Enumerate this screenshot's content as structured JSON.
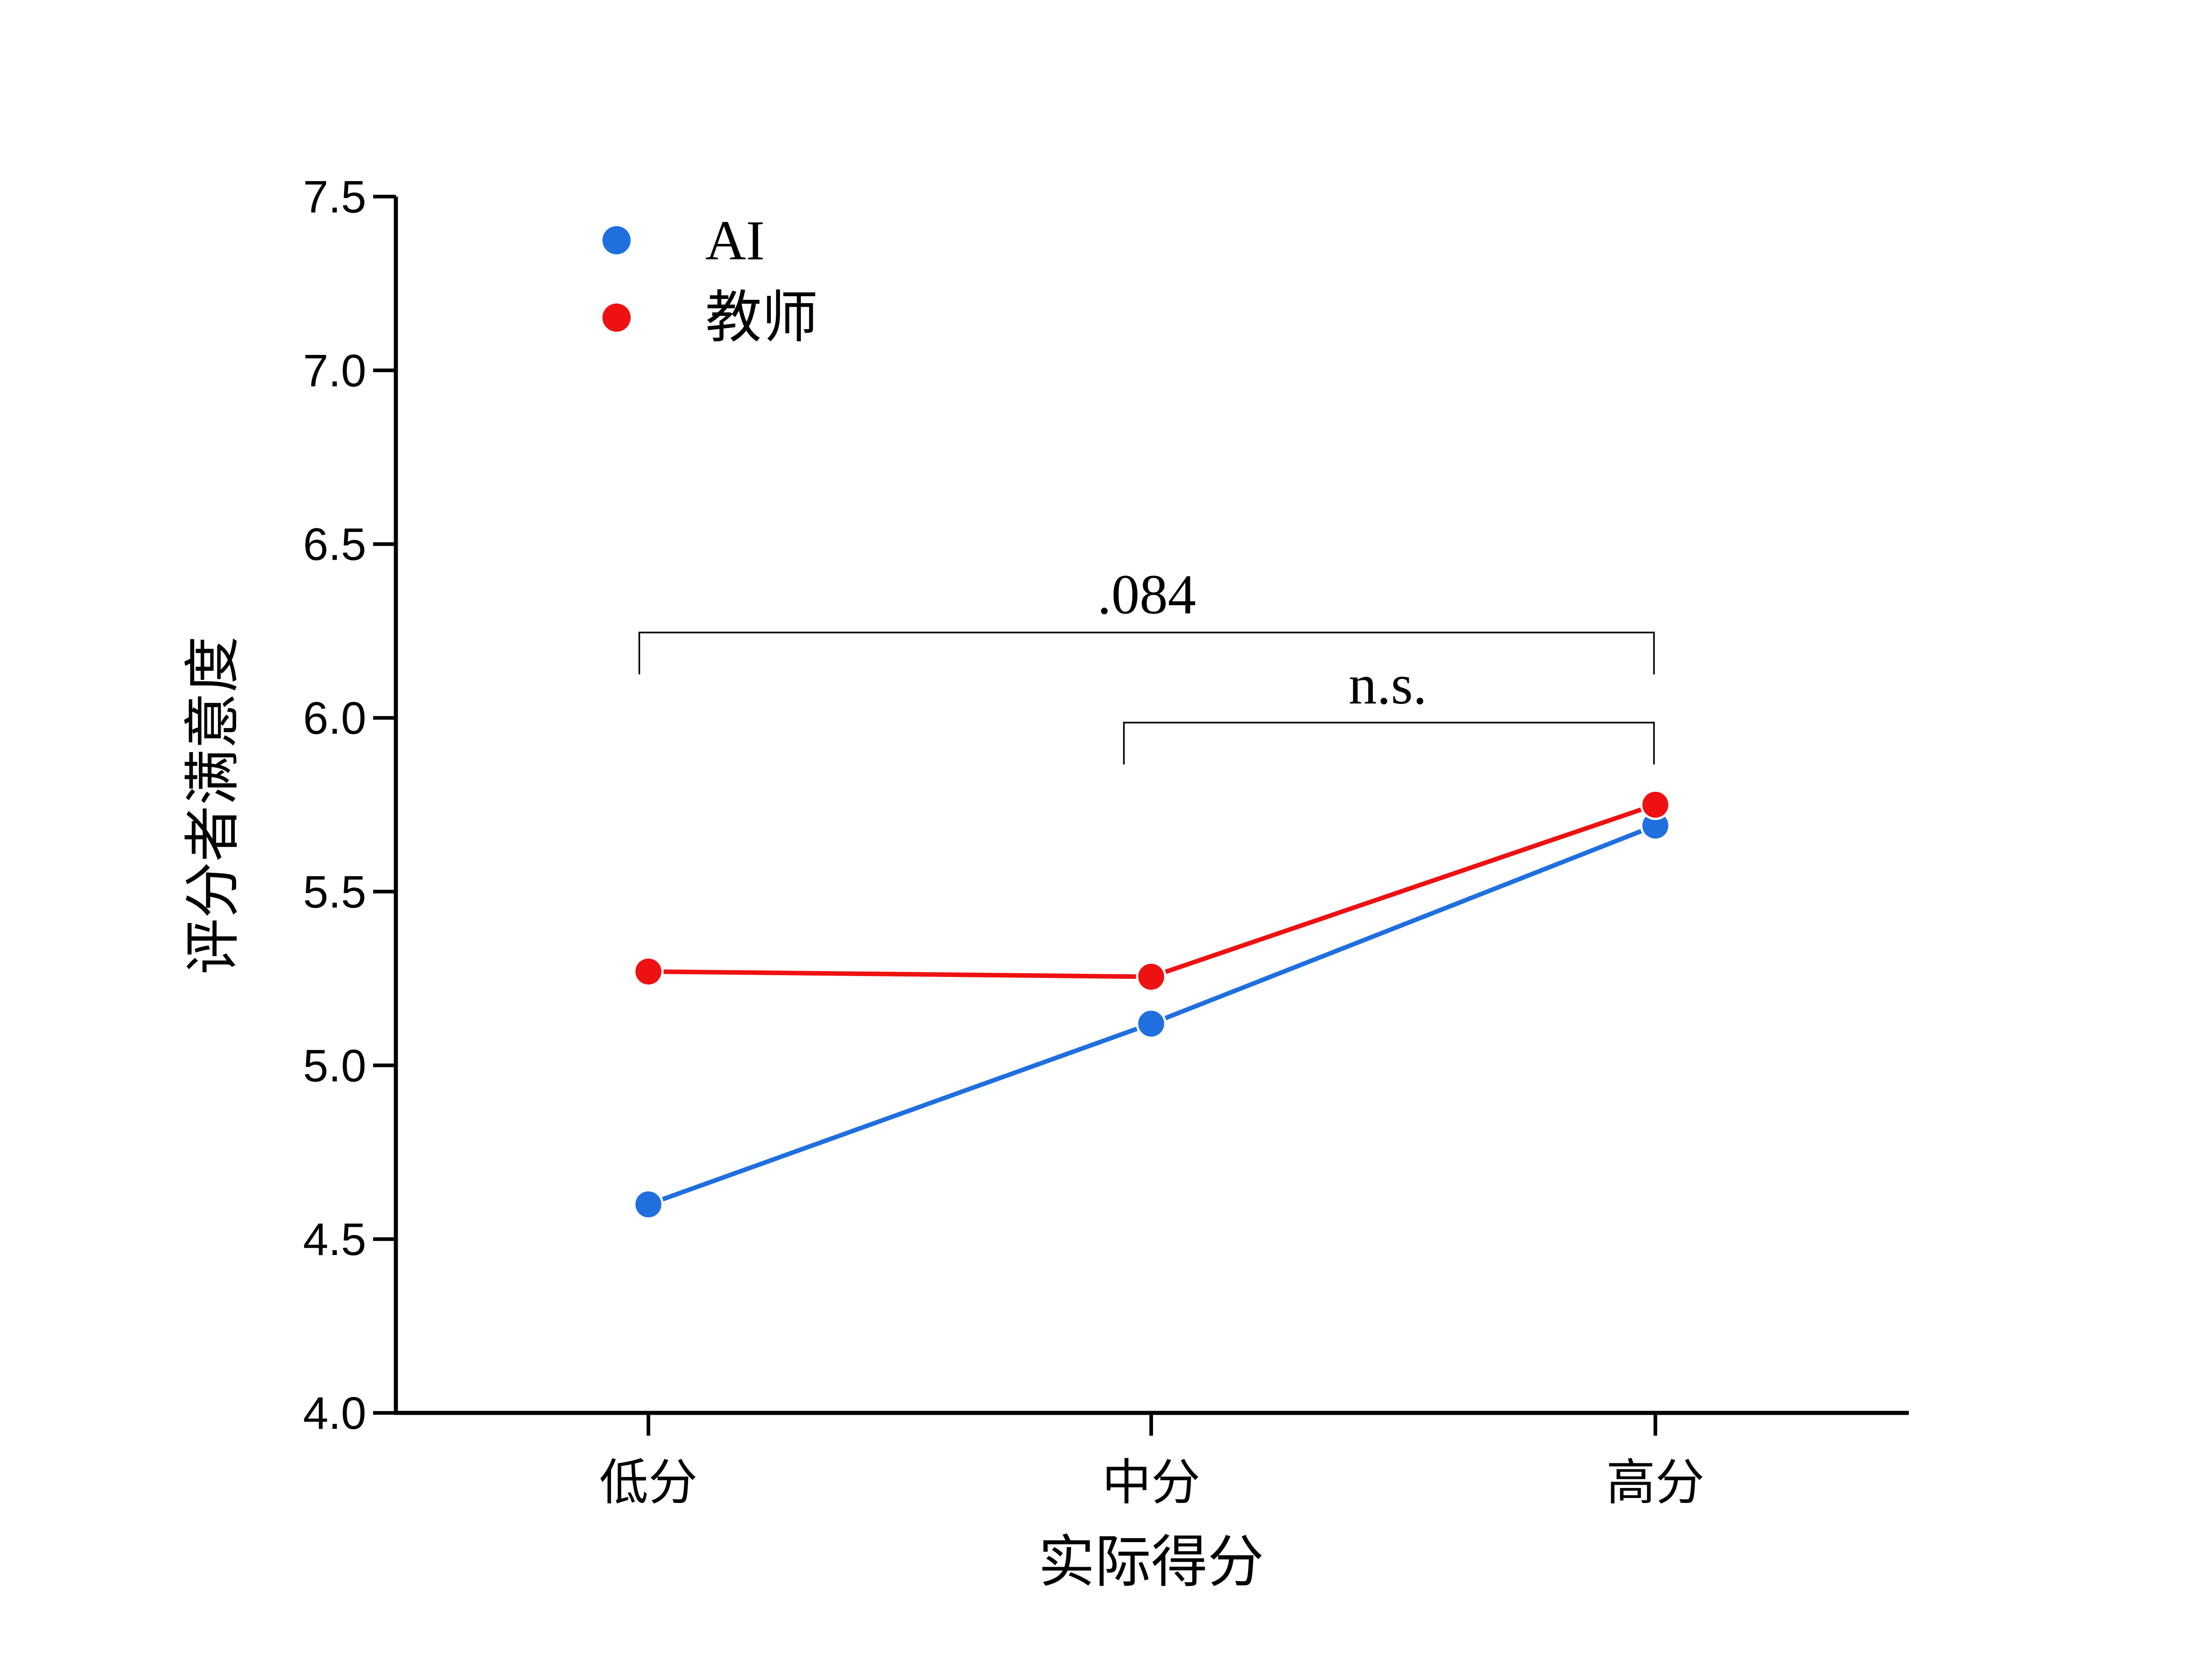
{
  "chart_data": {
    "type": "line",
    "title": "",
    "xlabel": "实际得分",
    "ylabel": "评分者满意度",
    "categories": [
      "低分",
      "中分",
      "高分"
    ],
    "ylim": [
      4.0,
      7.5
    ],
    "yticks": [
      4.0,
      4.5,
      5.0,
      5.5,
      6.0,
      6.5,
      7.0,
      7.5
    ],
    "ytick_labels": [
      "4.0",
      "4.5",
      "5.0",
      "5.5",
      "6.0",
      "6.5",
      "7.0",
      "7.5"
    ],
    "grid": false,
    "legend_position": "top-left",
    "series": [
      {
        "name": "AI",
        "color": "#1f6fdf",
        "values": [
          4.6,
          5.12,
          5.69
        ]
      },
      {
        "name": "教师",
        "color": "#ee1111",
        "values": [
          5.27,
          5.255,
          5.75
        ]
      }
    ],
    "annotations": [
      {
        "text": ".084",
        "from_category": 0,
        "to_category": 2,
        "y": 6.25
      },
      {
        "text": "n.s.",
        "from_category": 1,
        "to_category": 2,
        "y": 6.0
      }
    ]
  }
}
